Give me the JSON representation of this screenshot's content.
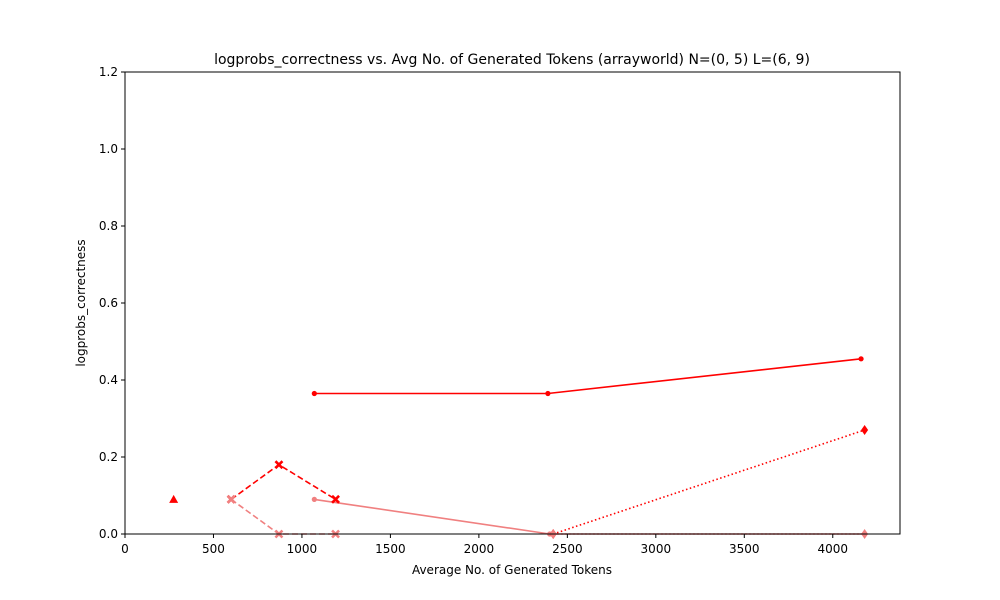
{
  "chart_data": {
    "type": "line",
    "title": "logprobs_correctness vs. Avg No. of Generated Tokens (arrayworld) N=(0, 5) L=(6, 9)",
    "xlabel": "Average No. of Generated Tokens",
    "ylabel": "logprobs_correctness",
    "xlim": [
      0,
      4380
    ],
    "ylim": [
      0,
      1.2
    ],
    "xticks": [
      0,
      500,
      1000,
      1500,
      2000,
      2500,
      3000,
      3500,
      4000
    ],
    "yticks": [
      0.0,
      0.2,
      0.4,
      0.6,
      0.8,
      1.0,
      1.2
    ],
    "xtick_labels": [
      "0",
      "500",
      "1000",
      "1500",
      "2000",
      "2500",
      "3000",
      "3500",
      "4000"
    ],
    "ytick_labels": [
      "0.0",
      "0.2",
      "0.4",
      "0.6",
      "0.8",
      "1.0",
      "1.2"
    ],
    "grid": false,
    "series": [
      {
        "color": "#ff0000",
        "linestyle": "solid",
        "marker": "circle",
        "points": [
          [
            1070,
            0.365
          ],
          [
            2390,
            0.365
          ],
          [
            4160,
            0.455
          ]
        ]
      },
      {
        "color": "#f08080",
        "linestyle": "solid",
        "marker": "circle",
        "points": [
          [
            1070,
            0.09
          ],
          [
            2400,
            0.0
          ],
          [
            4180,
            0.0
          ]
        ]
      },
      {
        "color": "#ff0000",
        "linestyle": "dashed",
        "marker": "x",
        "points": [
          [
            600,
            0.09
          ],
          [
            870,
            0.18
          ],
          [
            1190,
            0.09
          ]
        ]
      },
      {
        "color": "#f08080",
        "linestyle": "dashed",
        "marker": "x",
        "points": [
          [
            600,
            0.09
          ],
          [
            870,
            0.0
          ],
          [
            1190,
            0.0
          ]
        ]
      },
      {
        "color": "#ff0000",
        "linestyle": "dotted",
        "marker": "diamond",
        "points": [
          [
            2420,
            0.0
          ],
          [
            4180,
            0.27
          ]
        ]
      },
      {
        "color": "#f08080",
        "linestyle": "dotted",
        "marker": "diamond",
        "points": [
          [
            2420,
            0.0
          ],
          [
            4180,
            0.0
          ]
        ]
      },
      {
        "color": "#ff0000",
        "linestyle": "none",
        "marker": "triangle",
        "points": [
          [
            275,
            0.09
          ]
        ]
      }
    ]
  }
}
